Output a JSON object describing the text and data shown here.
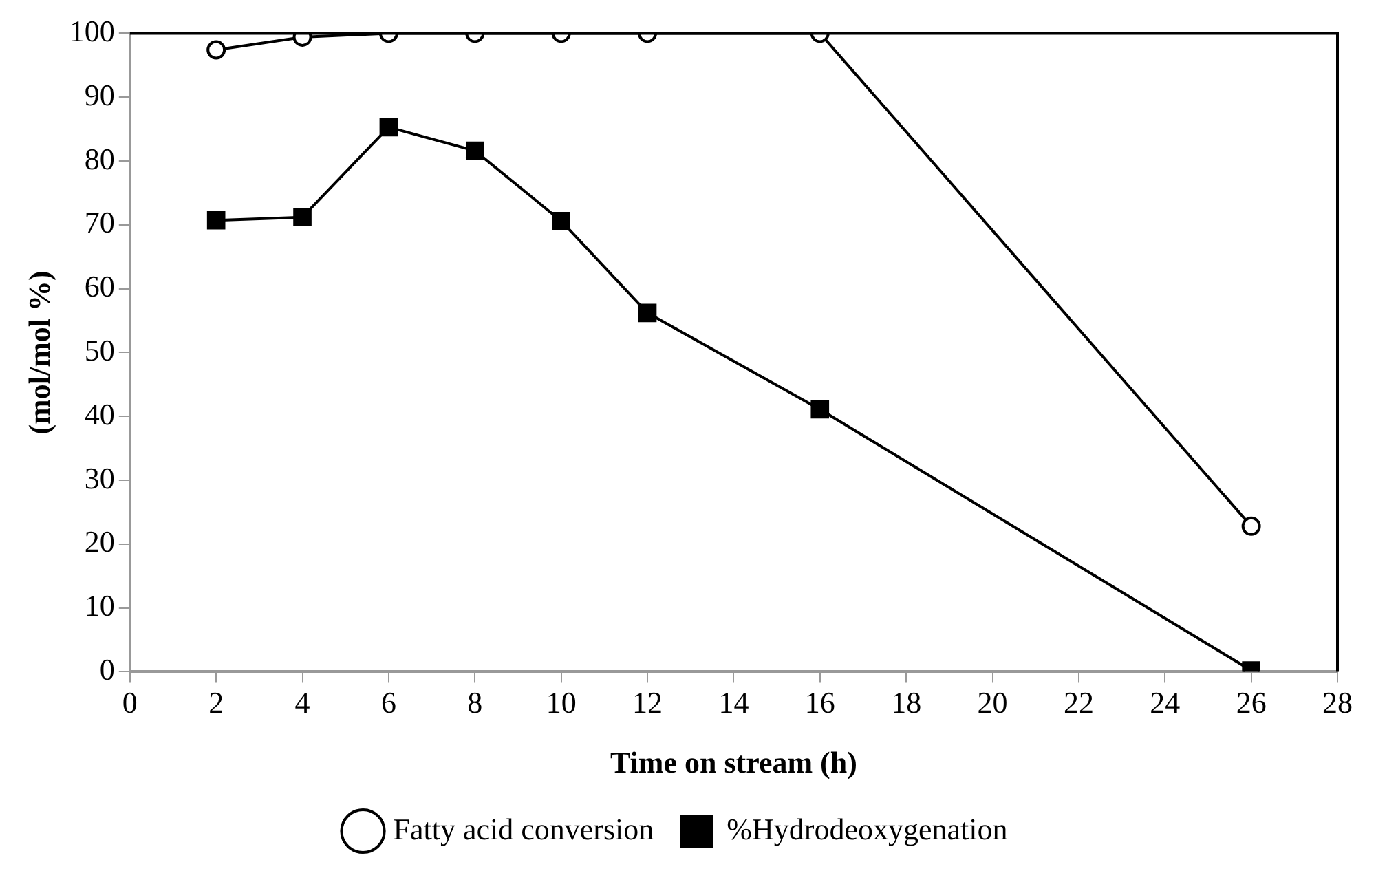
{
  "chart_data": {
    "type": "line",
    "xlabel": "Time on stream (h)",
    "ylabel": "(mol/mol %)",
    "x": [
      2,
      4,
      6,
      8,
      10,
      12,
      16,
      26
    ],
    "series": [
      {
        "name": "Fatty acid conversion",
        "color": "#000000",
        "marker": "circle",
        "values": [
          97.4,
          99.4,
          100,
          100,
          100,
          100,
          100,
          22.8
        ]
      },
      {
        "name": "%Hydrodeoxygenation",
        "color": "#000000",
        "marker": "square",
        "values": [
          70.7,
          71.2,
          85.3,
          81.6,
          70.6,
          56.2,
          41.1,
          0.2
        ]
      }
    ],
    "xlim": [
      0,
      28
    ],
    "xticks": [
      0,
      2,
      4,
      6,
      8,
      10,
      12,
      14,
      16,
      18,
      20,
      22,
      24,
      26,
      28
    ],
    "ylim": [
      0,
      100
    ],
    "yticks": [
      0,
      10,
      20,
      30,
      40,
      50,
      60,
      70,
      80,
      90,
      100
    ],
    "grid": false,
    "legend": "bottom",
    "line_style": "solid"
  }
}
